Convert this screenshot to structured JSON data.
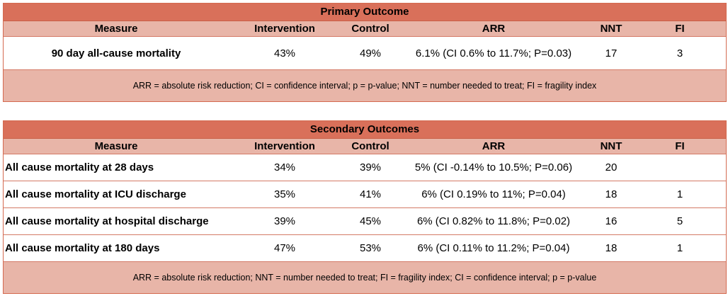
{
  "primary": {
    "title": "Primary Outcome",
    "headers": [
      "Measure",
      "Intervention",
      "Control",
      "ARR",
      "NNT",
      "FI"
    ],
    "rows": [
      {
        "measure": "90 day all-cause mortality",
        "intervention": "43%",
        "control": "49%",
        "arr": "6.1% (CI 0.6% to 11.7%; P=0.03)",
        "nnt": "17",
        "fi": "3"
      }
    ],
    "footnote": "ARR = absolute risk reduction; CI = confidence interval; p = p-value; NNT = number needed to treat; FI = fragility index"
  },
  "secondary": {
    "title": "Secondary Outcomes",
    "headers": [
      "Measure",
      "Intervention",
      "Control",
      "ARR",
      "NNT",
      "FI"
    ],
    "rows": [
      {
        "measure": "All cause mortality at 28 days",
        "intervention": "34%",
        "control": "39%",
        "arr": "5% (CI -0.14% to 10.5%; P=0.06)",
        "nnt": "20",
        "fi": ""
      },
      {
        "measure": "All cause mortality at ICU discharge",
        "intervention": "35%",
        "control": "41%",
        "arr": "6% (CI 0.19% to 11%; P=0.04)",
        "nnt": "18",
        "fi": "1"
      },
      {
        "measure": "All cause mortality at hospital discharge",
        "intervention": "39%",
        "control": "45%",
        "arr": "6% (CI 0.82% to 11.8%; P=0.02)",
        "nnt": "16",
        "fi": "5"
      },
      {
        "measure": "All cause mortality at 180 days",
        "intervention": "47%",
        "control": "53%",
        "arr": "6% (CI 0.11% to 11.2%; P=0.04)",
        "nnt": "18",
        "fi": "1"
      }
    ],
    "footnote": "ARR = absolute risk reduction; NNT = number needed to treat; FI = fragility index; CI = confidence interval; p = p-value"
  }
}
